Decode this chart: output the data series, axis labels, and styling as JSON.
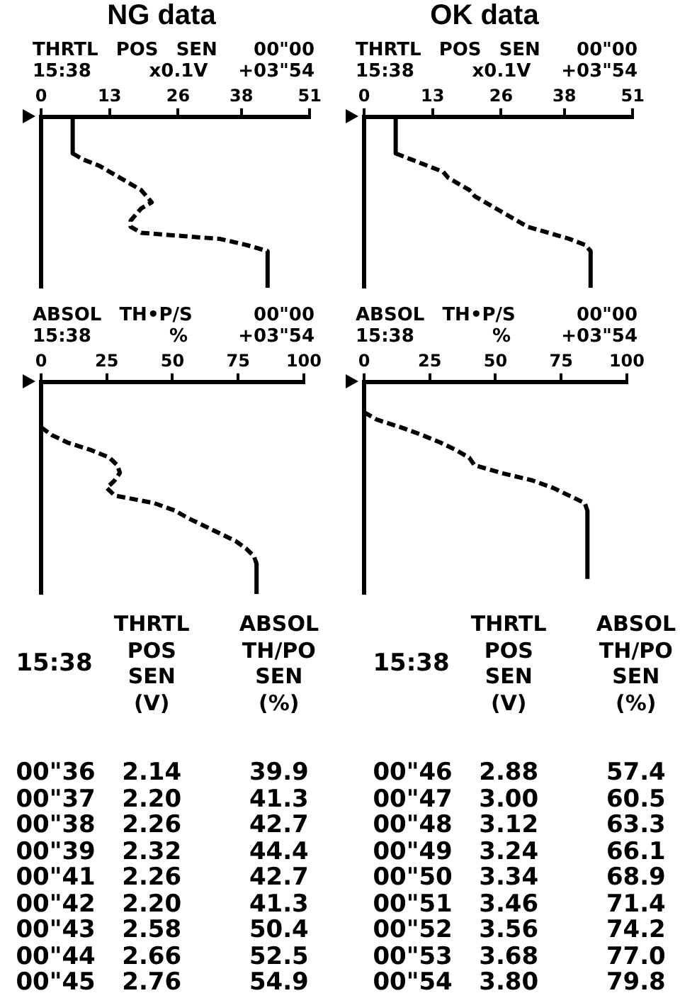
{
  "chart_data": [
    {
      "type": "line",
      "orientation": "horizontal",
      "title": "NG data",
      "xlabel": "THRTL POS SEN",
      "annotations": [
        "15:38",
        "x0.1V",
        "00\"00",
        "+03\"54"
      ],
      "categories": [
        null,
        null,
        null,
        null,
        null,
        null,
        null,
        null,
        null,
        null,
        null,
        null,
        null,
        null,
        null,
        null,
        null,
        null,
        null,
        null,
        null,
        null,
        null,
        null,
        null,
        null,
        null,
        null,
        null
      ],
      "series": [
        {
          "color": "#000000",
          "values": [
            6,
            6,
            6,
            6,
            6,
            6,
            6,
            8,
            11,
            13,
            15,
            17,
            19,
            20,
            21,
            19,
            18,
            17,
            17,
            19,
            34,
            39,
            43,
            43,
            43,
            43,
            43,
            43,
            43
          ]
        }
      ],
      "xlim": [
        0,
        51
      ],
      "xticks": [
        0,
        13,
        26,
        38,
        51
      ],
      "tick_labels": "x",
      "line_style": "dashed"
    },
    {
      "type": "line",
      "orientation": "horizontal",
      "title": "OK data",
      "xlabel": "THRTL POS SEN",
      "annotations": [
        "15:38",
        "x0.1V",
        "00\"00",
        "+03\"54"
      ],
      "categories": [
        null,
        null,
        null,
        null,
        null,
        null,
        null,
        null,
        null,
        null,
        null,
        null,
        null,
        null,
        null,
        null,
        null,
        null,
        null,
        null,
        null,
        null,
        null,
        null,
        null,
        null,
        null,
        null,
        null
      ],
      "series": [
        {
          "color": "#000000",
          "values": [
            6,
            6,
            6,
            6,
            6,
            6,
            6,
            9,
            12,
            15,
            16,
            18,
            20,
            21,
            23,
            25,
            27,
            29,
            31,
            35,
            39,
            42,
            43,
            43,
            43,
            43,
            43,
            43,
            43
          ]
        }
      ],
      "xlim": [
        0,
        51
      ],
      "xticks": [
        0,
        13,
        26,
        38,
        51
      ],
      "tick_labels": "x",
      "line_style": "dashed"
    },
    {
      "type": "line",
      "orientation": "horizontal",
      "xlabel": "ABSOL TH•P/S",
      "annotations": [
        "15:38",
        "%",
        "00\"00",
        "+03\"54"
      ],
      "categories": [
        null,
        null,
        null,
        null,
        null,
        null,
        null,
        null,
        null,
        null,
        null,
        null,
        null,
        null,
        null,
        null,
        null,
        null,
        null,
        null,
        null,
        null,
        null,
        null,
        null,
        null,
        null,
        null,
        null
      ],
      "series": [
        {
          "color": "#000000",
          "values": [
            0,
            0,
            0,
            0,
            0,
            0,
            0,
            4,
            10,
            19,
            26,
            29,
            30,
            28,
            25,
            28,
            43,
            51,
            56,
            62,
            68,
            74,
            78,
            81,
            82,
            82,
            82,
            82,
            82
          ]
        }
      ],
      "xlim": [
        0,
        100
      ],
      "xticks": [
        0,
        25,
        50,
        75,
        100
      ],
      "tick_labels": "x",
      "line_style": "dashed"
    },
    {
      "type": "line",
      "orientation": "horizontal",
      "xlabel": "ABSOL TH•P/S",
      "annotations": [
        "15:38",
        "%",
        "00\"00",
        "+03\"54"
      ],
      "categories": [
        null,
        null,
        null,
        null,
        null,
        null,
        null,
        null,
        null,
        null,
        null,
        null,
        null,
        null,
        null,
        null,
        null,
        null,
        null,
        null,
        null,
        null,
        null,
        null,
        null,
        null,
        null,
        null,
        null
      ],
      "series": [
        {
          "color": "#000000",
          "values": [
            0,
            0,
            0,
            0,
            0,
            5,
            14,
            22,
            29,
            35,
            40,
            42,
            52,
            64,
            72,
            78,
            84,
            85,
            85,
            85,
            85,
            85,
            85,
            85,
            85,
            85,
            85,
            null,
            null
          ]
        }
      ],
      "xlim": [
        0,
        100
      ],
      "xticks": [
        0,
        25,
        50,
        75,
        100
      ],
      "tick_labels": "x",
      "line_style": "dashed"
    },
    {
      "type": "other",
      "xlabel": "15:38",
      "categories": [
        "00\"36",
        "00\"37",
        "00\"38",
        "00\"39",
        "00\"41",
        "00\"42",
        "00\"43",
        "00\"44",
        "00\"45"
      ],
      "series": [
        {
          "name": "THRTL POS SEN (V)",
          "color": "#000000",
          "values": [
            2.14,
            2.2,
            2.26,
            2.32,
            2.26,
            2.2,
            2.58,
            2.66,
            2.76
          ],
          "value_labels": [
            "2.14",
            "2.20",
            "2.26",
            "2.32",
            "2.26",
            "2.20",
            "2.58",
            "2.66",
            "2.76"
          ]
        },
        {
          "name": "ABSOL TH/PO SEN (%)",
          "color": "#000000",
          "values": [
            39.9,
            41.3,
            42.7,
            44.4,
            42.7,
            41.3,
            50.4,
            52.5,
            54.9
          ],
          "value_labels": [
            "39.9",
            "41.3",
            "42.7",
            "44.4",
            "42.7",
            "41.3",
            "50.4",
            "52.5",
            "54.9"
          ]
        }
      ]
    },
    {
      "type": "other",
      "xlabel": "15:38",
      "categories": [
        "00\"46",
        "00\"47",
        "00\"48",
        "00\"49",
        "00\"50",
        "00\"51",
        "00\"52",
        "00\"53",
        "00\"54"
      ],
      "series": [
        {
          "name": "THRTL POS SEN (V)",
          "color": "#000000",
          "values": [
            2.88,
            3.0,
            3.12,
            3.24,
            3.34,
            3.46,
            3.56,
            3.68,
            3.8
          ],
          "value_labels": [
            "2.88",
            "3.00",
            "3.12",
            "3.24",
            "3.34",
            "3.46",
            "3.56",
            "3.68",
            "3.80"
          ]
        },
        {
          "name": "ABSOL TH/PO SEN (%)",
          "color": "#000000",
          "values": [
            57.4,
            60.5,
            63.3,
            66.1,
            68.9,
            71.4,
            74.2,
            77.0,
            79.8
          ],
          "value_labels": [
            "57.4",
            "60.5",
            "63.3",
            "66.1",
            "68.9",
            "71.4",
            "74.2",
            "77.0",
            "79.8"
          ]
        }
      ]
    }
  ]
}
